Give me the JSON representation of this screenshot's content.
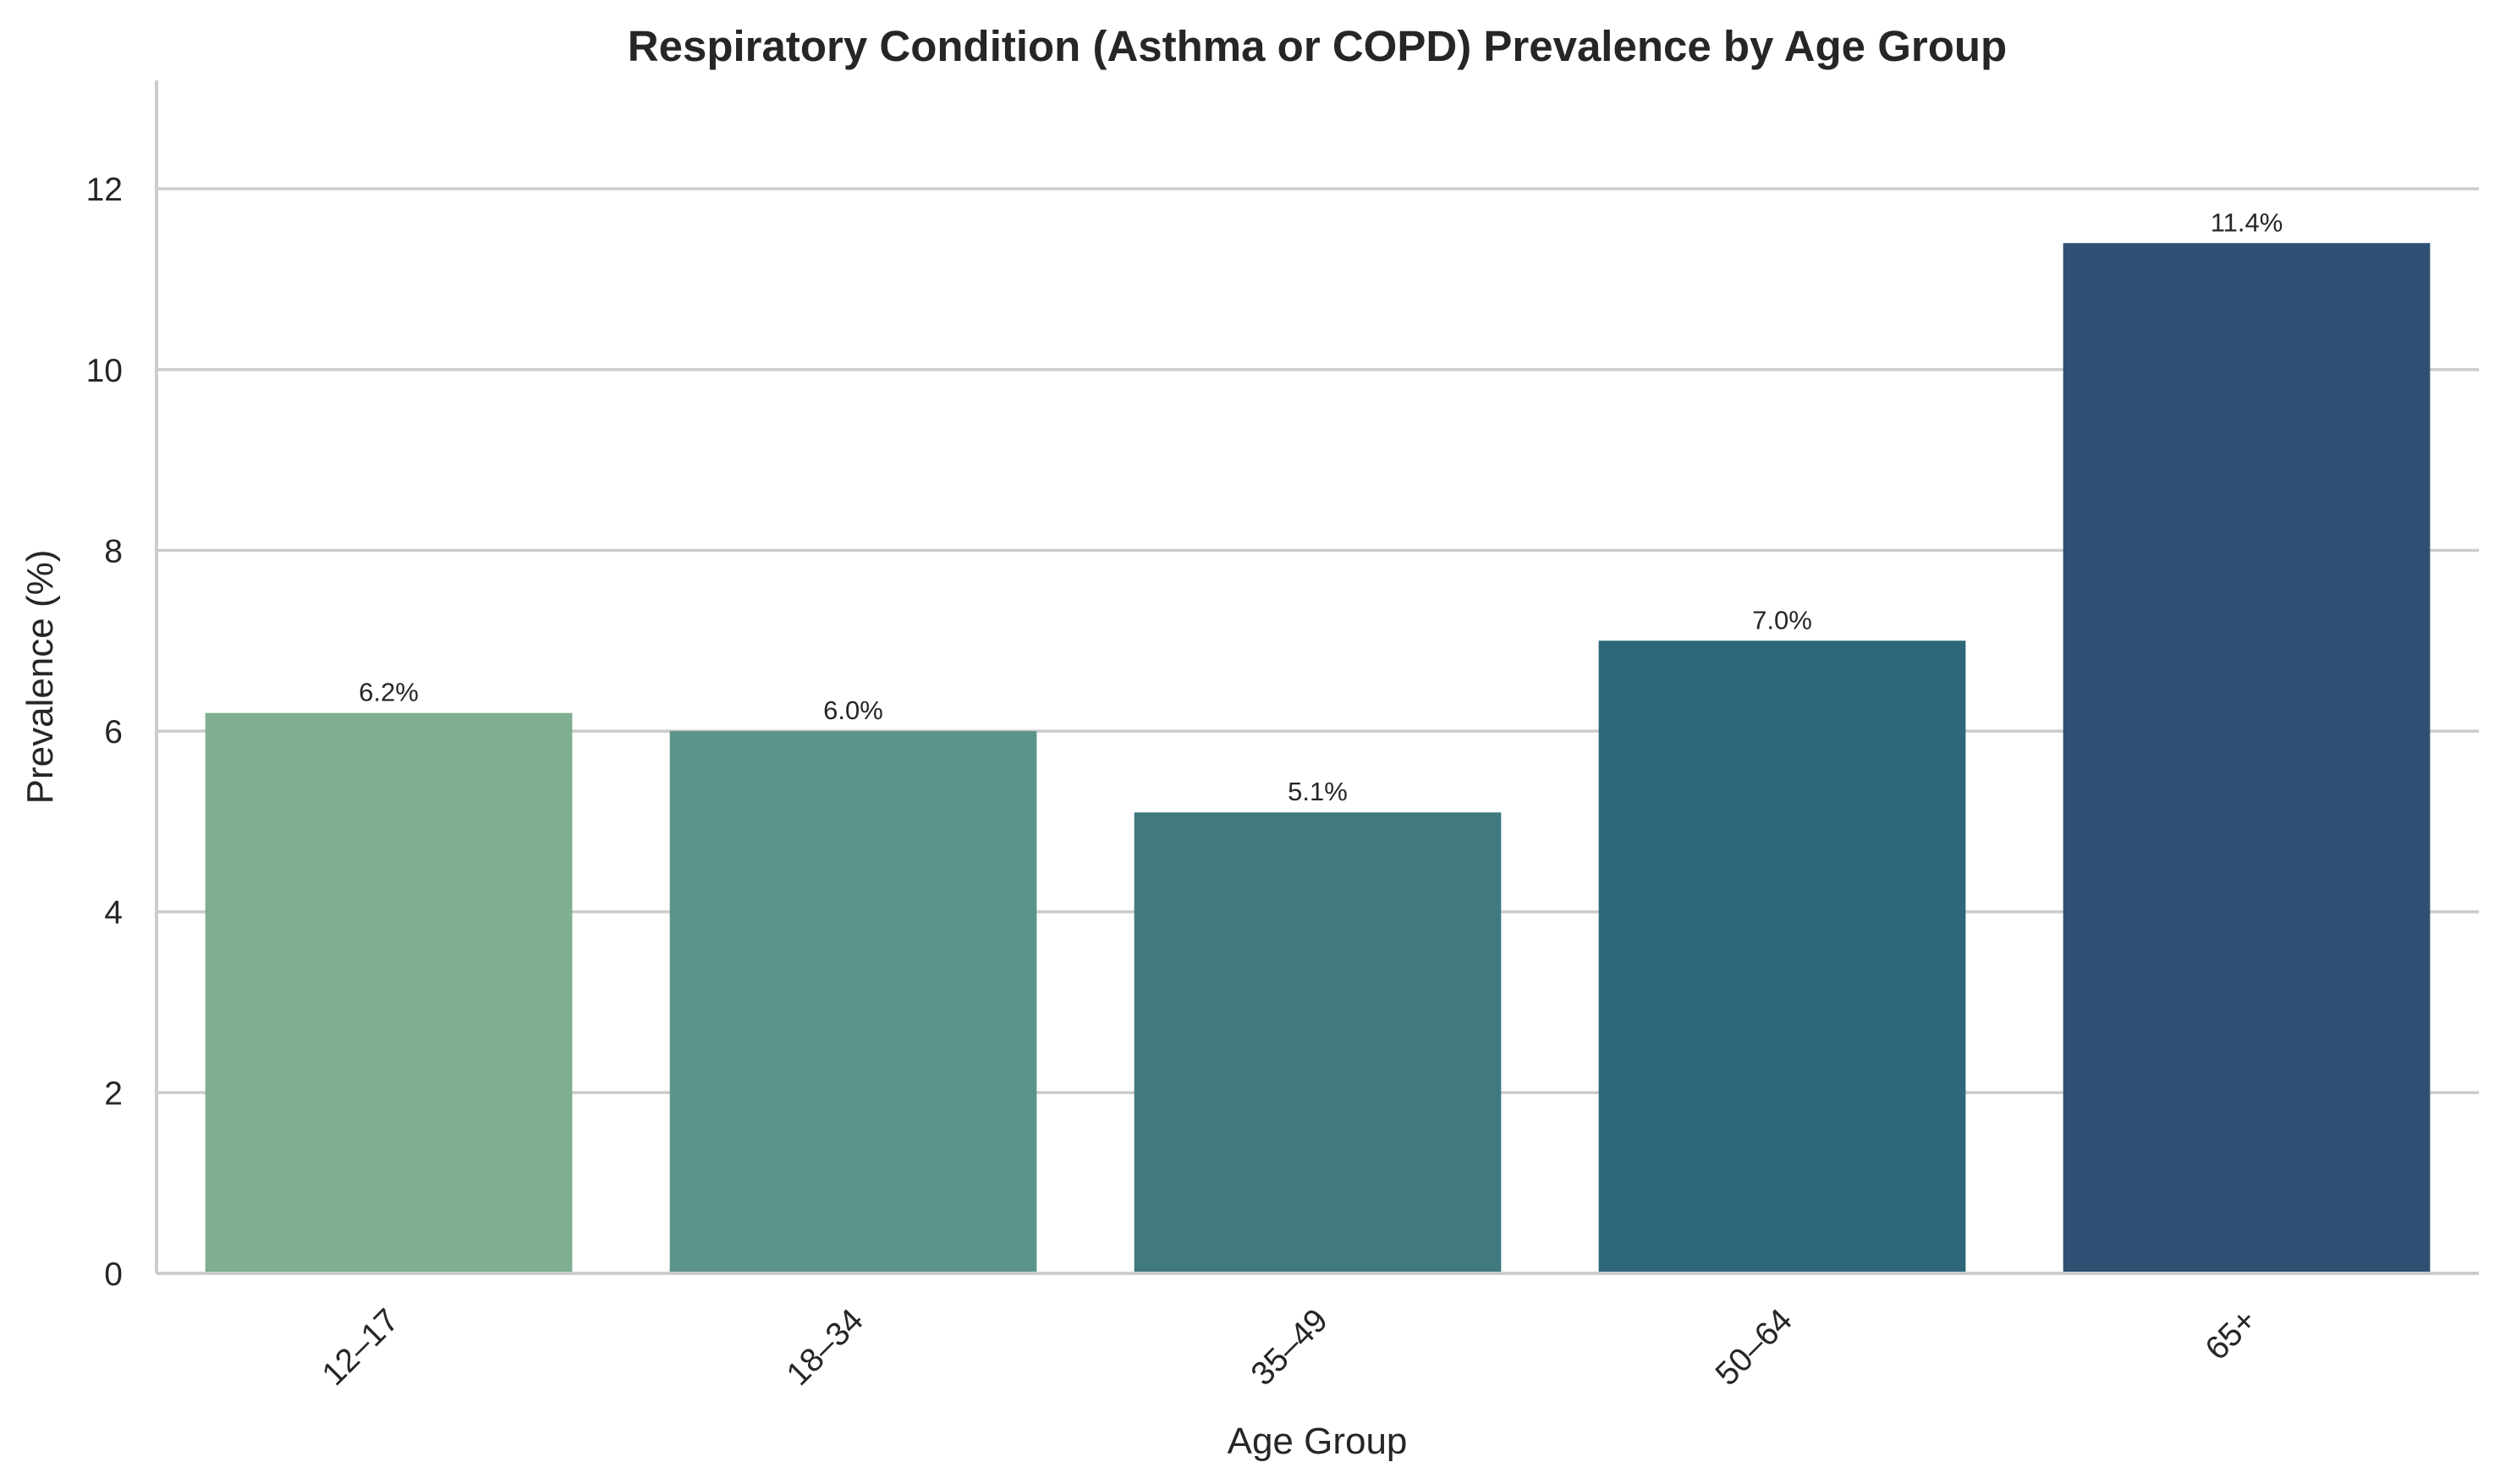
{
  "chart_data": {
    "type": "bar",
    "title": "Respiratory Condition (Asthma or COPD) Prevalence by Age Group",
    "xlabel": "Age Group",
    "ylabel": "Prevalence (%)",
    "categories": [
      "12–17",
      "18–34",
      "35–49",
      "50–64",
      "65+"
    ],
    "values": [
      6.2,
      6.0,
      5.1,
      7.0,
      11.4
    ],
    "value_labels": [
      "6.2%",
      "6.0%",
      "5.1%",
      "7.0%",
      "11.4%"
    ],
    "colors": [
      "#7fae90",
      "#5b9489",
      "#407a80",
      "#2e677a",
      "#2e5173"
    ],
    "ylim": [
      0,
      13.2
    ],
    "yticks": [
      0,
      2,
      4,
      6,
      8,
      10,
      12
    ],
    "grid": "horizontal",
    "legend": "none"
  }
}
